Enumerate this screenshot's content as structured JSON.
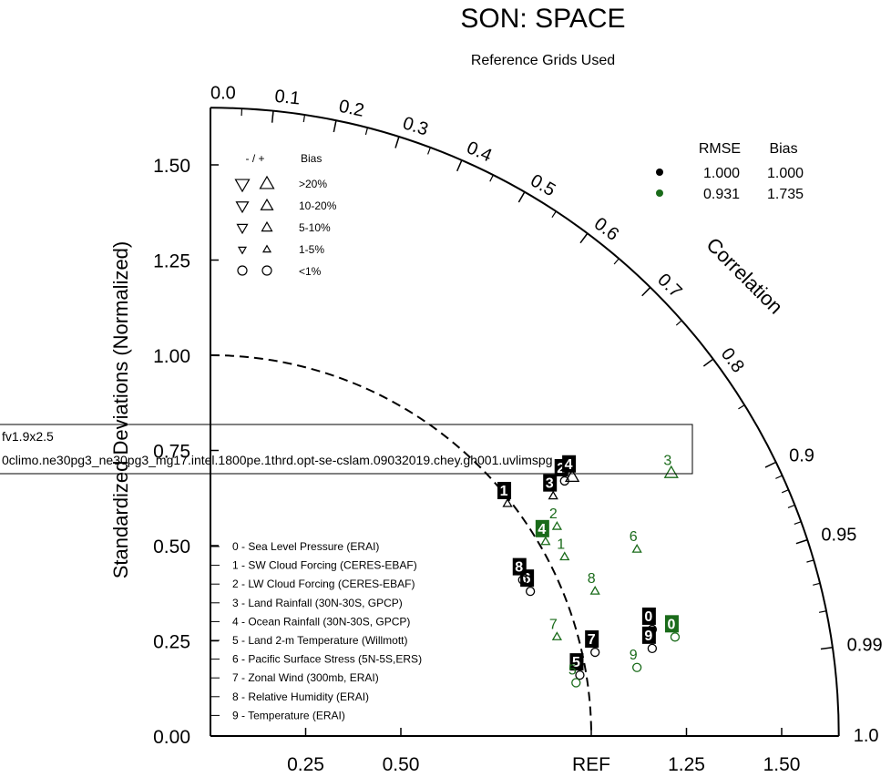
{
  "chart_data": {
    "type": "scatter",
    "subtype": "taylor-diagram",
    "title": "SON: SPACE",
    "subtitle": "Reference Grids Used",
    "ylabel": "Standardized Deviations (Normalized)",
    "angular_label": "Correlation",
    "std_range": [
      0,
      1.65
    ],
    "reference_std": 1.0,
    "x_ticks": [
      "0.25",
      "0.50",
      "REF",
      "1.25",
      "1.50"
    ],
    "x_tick_values": [
      0.25,
      0.5,
      1.0,
      1.25,
      1.5
    ],
    "y_ticks": [
      "0.00",
      "0.25",
      "0.50",
      "0.75",
      "1.00",
      "1.25",
      "1.50"
    ],
    "y_tick_values": [
      0,
      0.25,
      0.5,
      0.75,
      1.0,
      1.25,
      1.5
    ],
    "correlation_ticks": [
      "0.0",
      "0.1",
      "0.2",
      "0.3",
      "0.4",
      "0.5",
      "0.6",
      "0.7",
      "0.8",
      "0.9",
      "0.95",
      "0.99",
      "1.0"
    ],
    "correlation_tick_values": [
      0,
      0.1,
      0.2,
      0.3,
      0.4,
      0.5,
      0.6,
      0.7,
      0.8,
      0.9,
      0.95,
      0.99,
      1.0
    ],
    "bias_legend": {
      "header_sign": "- / +",
      "header_bias": "Bias",
      "rows": [
        ">20%",
        "10-20%",
        "5-10%",
        "1-5%",
        "<1%"
      ]
    },
    "rmse_bias_table": {
      "headers": [
        "RMSE",
        "Bias"
      ],
      "rows": [
        {
          "color": "#000000",
          "rmse": "1.000",
          "bias": "1.000"
        },
        {
          "color": "#1a6b1a",
          "rmse": "0.931",
          "bias": "1.735"
        }
      ]
    },
    "case_labels": [
      "fv1.9x2.5",
      "0climo.ne30pg3_ne30pg3_mg17.intel.1800pe.1thrd.opt-se-cslam.09032019.chey.gh001.uvlimspg"
    ],
    "variables": [
      "0 - Sea Level Pressure (ERAI)",
      "1 - SW Cloud Forcing (CERES-EBAF)",
      "2 - LW Cloud Forcing (CERES-EBAF)",
      "3 - Land Rainfall (30N-30S, GPCP)",
      "4 - Ocean Rainfall (30N-30S, GPCP)",
      "5 - Land 2-m Temperature (Willmott)",
      "6 - Pacific Surface Stress (5N-5S,ERS)",
      "7 - Zonal Wind (300mb, ERAI)",
      "8 - Relative Humidity (ERAI)",
      "9 - Temperature (ERAI)"
    ],
    "series": [
      {
        "color": "#000000",
        "points": [
          {
            "id": "0",
            "x": 1.16,
            "y": 0.28,
            "marker": "circle"
          },
          {
            "id": "1",
            "x": 0.78,
            "y": 0.61,
            "marker": "tri-up"
          },
          {
            "id": "2",
            "x": 0.93,
            "y": 0.67,
            "marker": "circle"
          },
          {
            "id": "3",
            "x": 0.9,
            "y": 0.63,
            "marker": "tri-up"
          },
          {
            "id": "4",
            "x": 0.95,
            "y": 0.68,
            "marker": "tri-up-large"
          },
          {
            "id": "5",
            "x": 0.97,
            "y": 0.16,
            "marker": "circle"
          },
          {
            "id": "6",
            "x": 0.84,
            "y": 0.38,
            "marker": "circle"
          },
          {
            "id": "7",
            "x": 1.01,
            "y": 0.22,
            "marker": "circle"
          },
          {
            "id": "8",
            "x": 0.82,
            "y": 0.41,
            "marker": "circle"
          },
          {
            "id": "9",
            "x": 1.16,
            "y": 0.23,
            "marker": "circle"
          }
        ]
      },
      {
        "color": "#1a6b1a",
        "points": [
          {
            "id": "0",
            "x": 1.22,
            "y": 0.26,
            "marker": "circle"
          },
          {
            "id": "1",
            "x": 0.93,
            "y": 0.47,
            "marker": "tri-up"
          },
          {
            "id": "2",
            "x": 0.91,
            "y": 0.55,
            "marker": "tri-up"
          },
          {
            "id": "3",
            "x": 1.21,
            "y": 0.69,
            "marker": "tri-up-large"
          },
          {
            "id": "4",
            "x": 0.88,
            "y": 0.51,
            "marker": "tri-up"
          },
          {
            "id": "5",
            "x": 0.96,
            "y": 0.14,
            "marker": "circle"
          },
          {
            "id": "6",
            "x": 1.12,
            "y": 0.49,
            "marker": "tri-up"
          },
          {
            "id": "7",
            "x": 0.91,
            "y": 0.26,
            "marker": "tri-up"
          },
          {
            "id": "8",
            "x": 1.01,
            "y": 0.38,
            "marker": "tri-up"
          },
          {
            "id": "9",
            "x": 1.12,
            "y": 0.18,
            "marker": "circle"
          }
        ]
      }
    ]
  }
}
